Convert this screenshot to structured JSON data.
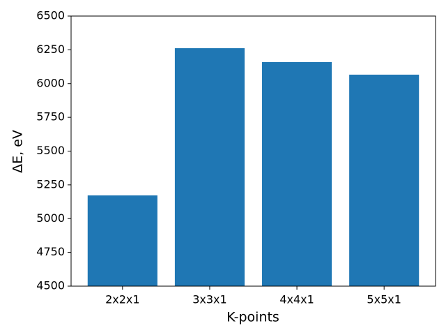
{
  "chart_data": {
    "type": "bar",
    "x_label": "K-points",
    "y_label": "ΔE, eV",
    "categories": [
      "2x2x1",
      "3x3x1",
      "4x4x1",
      "5x5x1"
    ],
    "values": [
      5172,
      6262,
      6159,
      6066
    ],
    "color": "#1f77b4",
    "ylim": [
      4500,
      6500
    ],
    "yticks": [
      4500,
      4750,
      5000,
      5250,
      5500,
      5750,
      6000,
      6250,
      6500
    ],
    "grid": false
  }
}
